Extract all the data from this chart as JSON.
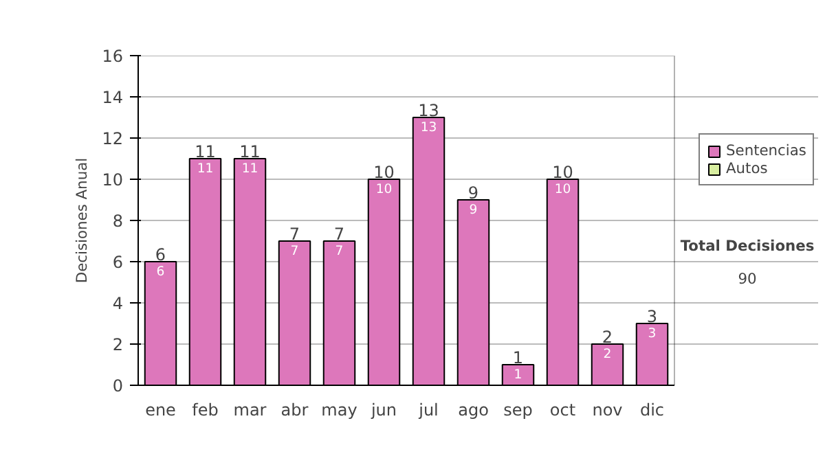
{
  "chart_data": {
    "type": "bar",
    "ylabel": "Decisiones Anual",
    "categories": [
      "ene",
      "feb",
      "mar",
      "abr",
      "may",
      "jun",
      "jul",
      "ago",
      "sep",
      "oct",
      "nov",
      "dic"
    ],
    "stacked": true,
    "series": [
      {
        "name": "Sentencias",
        "color": "#dd77bb",
        "values": [
          6,
          11,
          11,
          7,
          7,
          10,
          13,
          9,
          1,
          10,
          2,
          3
        ],
        "value_labels": [
          "6",
          "11",
          "11",
          "7",
          "7",
          "10",
          "13",
          "9",
          "1",
          "10",
          "2",
          "3"
        ]
      },
      {
        "name": "Autos",
        "color": "#d8eea0",
        "values": [
          null,
          null,
          null,
          null,
          null,
          null,
          null,
          null,
          null,
          null,
          null,
          null
        ]
      }
    ],
    "totals": [
      "6",
      "11",
      "11",
      "7",
      "7",
      "10",
      "13",
      "9",
      "1",
      "10",
      "2",
      "3"
    ],
    "ylim": [
      0,
      16
    ],
    "yticks": [
      0,
      2,
      4,
      6,
      8,
      10,
      12,
      14,
      16
    ],
    "grid": "y",
    "legend": "right",
    "annotations": [
      "Total Decisiones",
      "90"
    ]
  }
}
